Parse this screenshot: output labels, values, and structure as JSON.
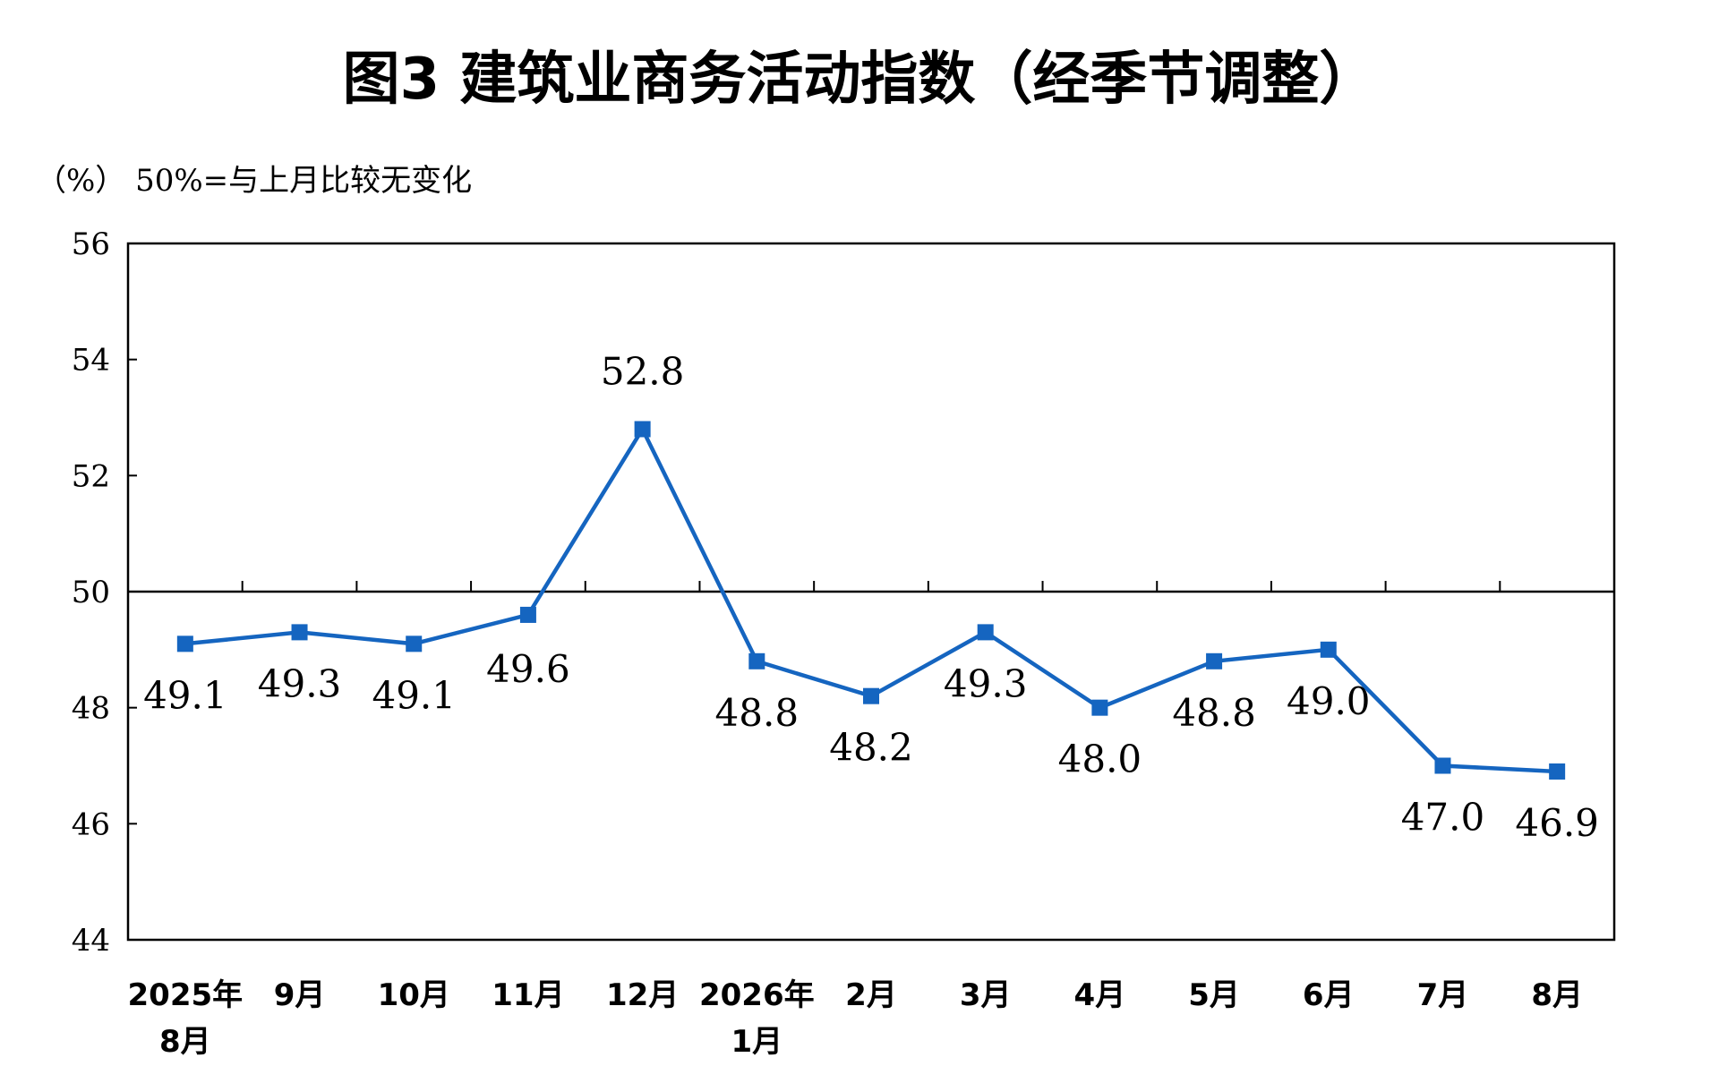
{
  "chart_data": {
    "type": "line",
    "title": "图3  建筑业商务活动指数（经季节调整）",
    "unit_note": "（%）  50%=与上月比较无变化",
    "categories": [
      [
        "2025年",
        "8月"
      ],
      [
        "9月"
      ],
      [
        "10月"
      ],
      [
        "11月"
      ],
      [
        "12月"
      ],
      [
        "2026年",
        "1月"
      ],
      [
        "2月"
      ],
      [
        "3月"
      ],
      [
        "4月"
      ],
      [
        "5月"
      ],
      [
        "6月"
      ],
      [
        "7月"
      ],
      [
        "8月"
      ]
    ],
    "series": [
      {
        "values": [
          49.1,
          49.3,
          49.1,
          49.6,
          52.8,
          48.8,
          48.2,
          49.3,
          48.0,
          48.8,
          49.0,
          47.0,
          46.9
        ],
        "labels": [
          "49.1",
          "49.3",
          "49.1",
          "49.6",
          "52.8",
          "48.8",
          "48.2",
          "49.3",
          "48.0",
          "48.8",
          "49.0",
          "47.0",
          "46.9"
        ]
      }
    ],
    "ylim": [
      44,
      56
    ],
    "yticks": [
      "44",
      "46",
      "48",
      "50",
      "52",
      "54",
      "56"
    ],
    "reference_line": 50,
    "line_color": "#1565C0",
    "marker": "square",
    "grid": false
  }
}
